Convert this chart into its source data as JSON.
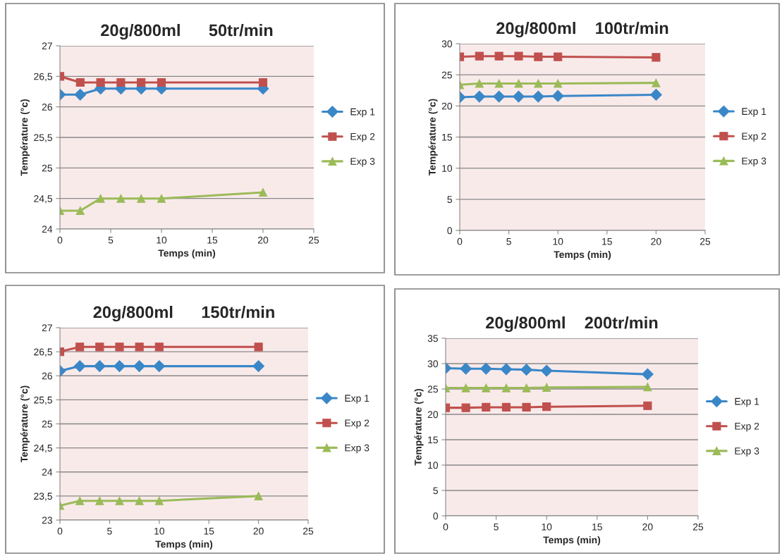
{
  "chart_data": [
    {
      "type": "line",
      "title": "20g/800ml      50tr/min",
      "xlabel": "Temps (min)",
      "ylabel": "Température (°c)",
      "x": [
        0,
        2,
        4,
        6,
        8,
        10,
        20
      ],
      "xlim": [
        0,
        25
      ],
      "xticks": [
        0,
        5,
        10,
        15,
        20,
        25
      ],
      "ylim": [
        24,
        27
      ],
      "yticks": [
        24,
        {
          "value": 24.5,
          "label": "24,5"
        },
        25,
        {
          "value": 25.5,
          "label": "25,5"
        },
        26,
        {
          "value": 26.5,
          "label": "26,5"
        },
        27
      ],
      "grid": "y",
      "legend": "right",
      "series": [
        {
          "name": "Exp 1",
          "color": "#3a87c8",
          "marker": "diamond",
          "values": [
            26.2,
            26.2,
            26.3,
            26.3,
            26.3,
            26.3,
            26.3
          ]
        },
        {
          "name": "Exp 2",
          "color": "#c0504d",
          "marker": "square",
          "values": [
            26.5,
            26.4,
            26.4,
            26.4,
            26.4,
            26.4,
            26.4
          ]
        },
        {
          "name": "Exp 3",
          "color": "#9bbb59",
          "marker": "triangle",
          "values": [
            24.3,
            24.3,
            24.5,
            24.5,
            24.5,
            24.5,
            24.6
          ]
        }
      ]
    },
    {
      "type": "line",
      "title": "20g/800ml    100tr/min",
      "xlabel": "Temps (min)",
      "ylabel": "Température (°c)",
      "x": [
        0,
        2,
        4,
        6,
        8,
        10,
        20
      ],
      "xlim": [
        0,
        25
      ],
      "xticks": [
        0,
        5,
        10,
        15,
        20,
        25
      ],
      "ylim": [
        0,
        30
      ],
      "yticks": [
        0,
        5,
        10,
        15,
        20,
        25,
        30
      ],
      "grid": "y",
      "legend": "right",
      "series": [
        {
          "name": "Exp 1",
          "color": "#3a87c8",
          "marker": "diamond",
          "values": [
            21.4,
            21.5,
            21.5,
            21.5,
            21.5,
            21.6,
            21.8
          ]
        },
        {
          "name": "Exp 2",
          "color": "#c0504d",
          "marker": "square",
          "values": [
            27.9,
            28.0,
            28.0,
            28.0,
            27.9,
            27.9,
            27.8
          ]
        },
        {
          "name": "Exp 3",
          "color": "#9bbb59",
          "marker": "triangle",
          "values": [
            23.4,
            23.6,
            23.6,
            23.6,
            23.6,
            23.6,
            23.7
          ]
        }
      ]
    },
    {
      "type": "line",
      "title": "20g/800ml      150tr/min",
      "xlabel": "Temps (min)",
      "ylabel": "Température (°c)",
      "x": [
        0,
        2,
        4,
        6,
        8,
        10,
        20
      ],
      "xlim": [
        0,
        25
      ],
      "xticks": [
        0,
        5,
        10,
        15,
        20,
        25
      ],
      "ylim": [
        23,
        27
      ],
      "yticks": [
        23,
        {
          "value": 23.5,
          "label": "23,5"
        },
        24,
        {
          "value": 24.5,
          "label": "24,5"
        },
        25,
        {
          "value": 25.5,
          "label": "25,5"
        },
        26,
        {
          "value": 26.5,
          "label": "26,5"
        },
        27
      ],
      "grid": "y",
      "legend": "right",
      "series": [
        {
          "name": "Exp 1",
          "color": "#3a87c8",
          "marker": "diamond",
          "values": [
            26.1,
            26.2,
            26.2,
            26.2,
            26.2,
            26.2,
            26.2
          ]
        },
        {
          "name": "Exp 2",
          "color": "#c0504d",
          "marker": "square",
          "values": [
            26.5,
            26.6,
            26.6,
            26.6,
            26.6,
            26.6,
            26.6
          ]
        },
        {
          "name": "Exp 3",
          "color": "#9bbb59",
          "marker": "triangle",
          "values": [
            23.3,
            23.4,
            23.4,
            23.4,
            23.4,
            23.4,
            23.5
          ]
        }
      ]
    },
    {
      "type": "line",
      "title": "20g/800ml    200tr/min",
      "xlabel": "Temps (min)",
      "ylabel": "Température (°c)",
      "x": [
        0,
        2,
        4,
        6,
        8,
        10,
        20
      ],
      "xlim": [
        0,
        25
      ],
      "xticks": [
        0,
        5,
        10,
        15,
        20,
        25
      ],
      "ylim": [
        0,
        35
      ],
      "yticks": [
        0,
        5,
        10,
        15,
        20,
        25,
        30,
        35
      ],
      "grid": "y",
      "legend": "right",
      "series": [
        {
          "name": "Exp 1",
          "color": "#3a87c8",
          "marker": "diamond",
          "values": [
            29.1,
            29.0,
            29.0,
            28.9,
            28.8,
            28.6,
            27.9
          ]
        },
        {
          "name": "Exp 2",
          "color": "#c0504d",
          "marker": "square",
          "values": [
            21.3,
            21.3,
            21.4,
            21.4,
            21.4,
            21.5,
            21.7
          ]
        },
        {
          "name": "Exp 3",
          "color": "#9bbb59",
          "marker": "triangle",
          "values": [
            25.2,
            25.2,
            25.2,
            25.2,
            25.2,
            25.3,
            25.4
          ]
        }
      ]
    }
  ]
}
